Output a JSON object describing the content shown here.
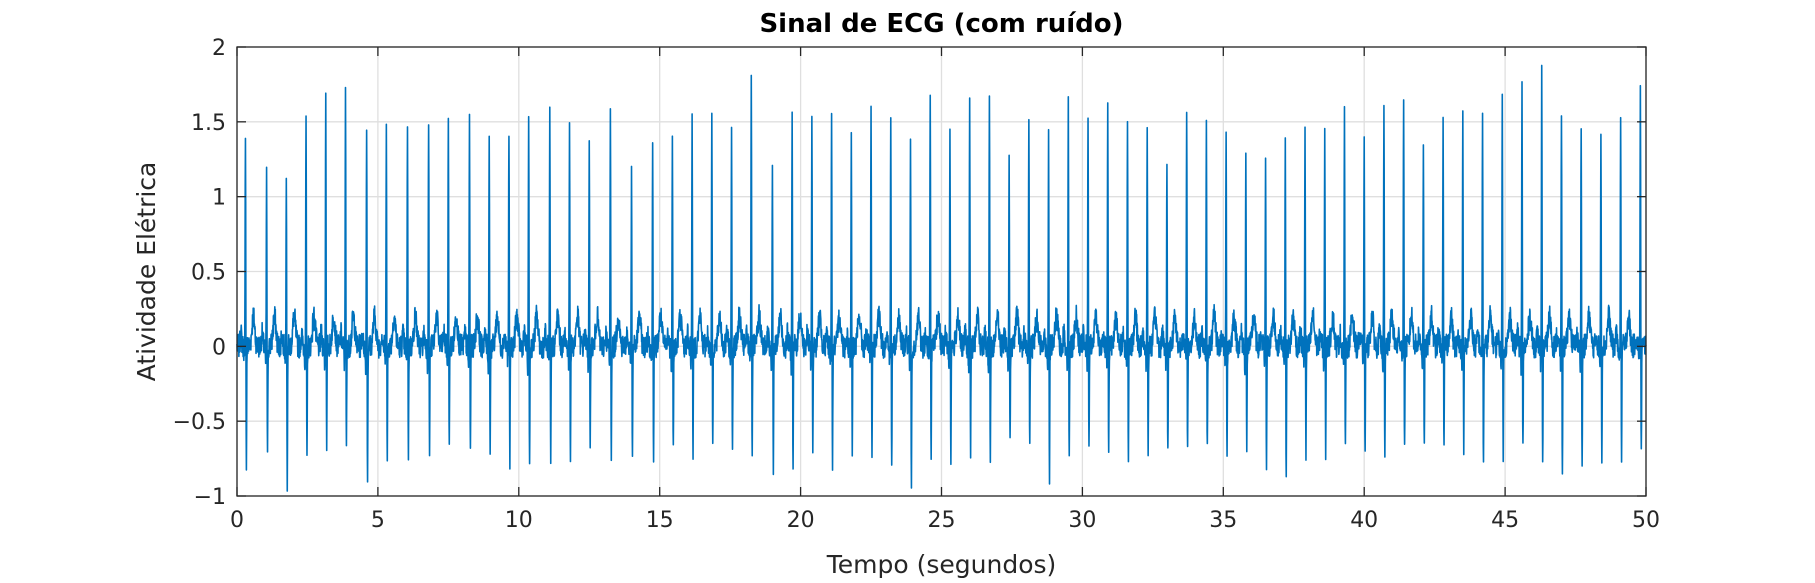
{
  "chart_data": {
    "type": "line",
    "title": "Sinal de ECG (com ruído)",
    "xlabel": "Tempo (segundos)",
    "ylabel": "Atividade Elétrica",
    "xlim": [
      0,
      50
    ],
    "ylim": [
      -1,
      2
    ],
    "xticks": [
      0,
      5,
      10,
      15,
      20,
      25,
      30,
      35,
      40,
      45,
      50
    ],
    "xtick_labels": [
      "0",
      "5",
      "10",
      "15",
      "20",
      "25",
      "30",
      "35",
      "40",
      "45",
      "50"
    ],
    "yticks": [
      -1,
      -0.5,
      0,
      0.5,
      1,
      1.5,
      2
    ],
    "ytick_labels": [
      "−1",
      "−0.5",
      "0",
      "0.5",
      "1",
      "1.5",
      "2"
    ],
    "grid": true,
    "line_color": "#0072BD",
    "series": [
      {
        "r_peak_times": [
          0.3,
          1.05,
          1.75,
          2.45,
          3.15,
          3.85,
          4.6,
          5.3,
          6.05,
          6.8,
          7.5,
          8.25,
          8.95,
          9.65,
          10.35,
          11.1,
          11.8,
          12.5,
          13.25,
          14.0,
          14.75,
          15.45,
          16.15,
          16.85,
          17.55,
          18.25,
          19.0,
          19.7,
          20.4,
          21.1,
          21.8,
          22.5,
          23.2,
          23.9,
          24.6,
          25.3,
          26.0,
          26.7,
          27.4,
          28.1,
          28.8,
          29.5,
          30.2,
          30.9,
          31.6,
          32.3,
          33.0,
          33.7,
          34.4,
          35.1,
          35.8,
          36.5,
          37.2,
          37.9,
          38.6,
          39.3,
          40.0,
          40.7,
          41.4,
          42.1,
          42.8,
          43.5,
          44.2,
          44.9,
          45.6,
          46.3,
          47.0,
          47.7,
          48.4,
          49.1,
          49.8
        ],
        "r_peak_values": [
          1.47,
          1.14,
          1.19,
          1.54,
          1.73,
          1.77,
          1.53,
          1.54,
          1.53,
          1.53,
          1.54,
          1.53,
          1.48,
          1.47,
          1.54,
          1.55,
          1.53,
          1.35,
          1.6,
          1.13,
          1.37,
          1.48,
          1.55,
          1.6,
          1.49,
          1.88,
          1.25,
          1.57,
          1.55,
          1.6,
          1.47,
          1.54,
          1.54,
          1.33,
          1.63,
          1.42,
          1.66,
          1.72,
          1.3,
          1.5,
          1.4,
          1.6,
          1.48,
          1.65,
          1.5,
          1.45,
          1.25,
          1.64,
          1.47,
          1.39,
          1.28,
          1.22,
          1.34,
          1.5,
          1.45,
          1.54,
          1.33,
          1.66,
          1.72,
          1.32,
          1.53,
          1.52,
          1.55,
          1.67,
          1.72,
          1.81,
          1.59,
          1.54,
          1.47,
          1.53,
          1.68
        ],
        "s_wave_values": [
          -0.82,
          -0.78,
          -0.95,
          -0.81,
          -0.71,
          -0.7,
          -0.9,
          -0.8,
          -0.72,
          -0.72,
          -0.71,
          -0.72,
          -0.7,
          -0.78,
          -0.78,
          -0.82,
          -0.72,
          -0.72,
          -0.7,
          -0.8,
          -0.72,
          -0.71,
          -0.7,
          -0.67,
          -0.72,
          -0.75,
          -0.8,
          -0.86,
          -0.73,
          -0.82,
          -0.7,
          -0.73,
          -0.88,
          -0.9,
          -0.72,
          -0.73,
          -0.72,
          -0.79,
          -0.7,
          -0.71,
          -0.86,
          -0.75,
          -0.71,
          -0.7,
          -0.72,
          -0.74,
          -0.72,
          -0.71,
          -0.72,
          -0.7,
          -0.72,
          -0.8,
          -0.9,
          -0.72,
          -0.71,
          -0.74,
          -0.72,
          -0.82,
          -0.73,
          -0.72,
          -0.72,
          -0.7,
          -0.84,
          -0.75,
          -0.72,
          -0.86,
          -0.84,
          -0.86,
          -0.72,
          -0.72,
          -0.73
        ],
        "t_wave_value": 0.2,
        "baseline": 0.0
      }
    ]
  }
}
